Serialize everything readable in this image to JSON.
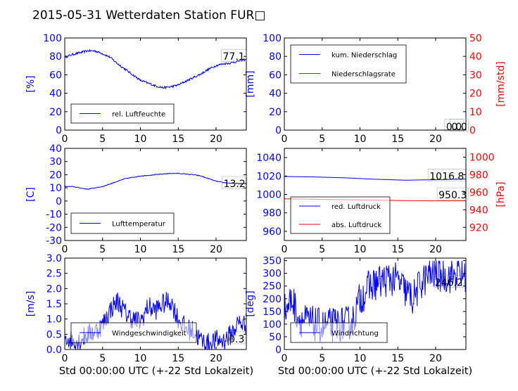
{
  "figure": {
    "title": "2015-05-31 Wetterdaten Station FUR□",
    "xlabel": "Std 00:00:00 UTC (+-22 Std Lokalzeit)",
    "colors": {
      "blue": "#0000ff",
      "red": "#ff0000",
      "axes": "#000000",
      "legend_border": "#000000"
    }
  },
  "chart_data": [
    {
      "id": "humidity",
      "type": "line",
      "ylabel": "[%]",
      "xlim": [
        0,
        24
      ],
      "ylim": [
        0,
        100
      ],
      "xticks": [
        0,
        5,
        10,
        15,
        20
      ],
      "yticks": [
        0,
        20,
        40,
        60,
        80,
        100
      ],
      "series": [
        {
          "name": "rel. Luftfeuchte",
          "color": "#0000ff",
          "noise": 1.2,
          "x": [
            0,
            1,
            2,
            3,
            4,
            5,
            6,
            7,
            8,
            9,
            10,
            11,
            12,
            13,
            14,
            15,
            16,
            17,
            18,
            19,
            20,
            21,
            22,
            23,
            24
          ],
          "y": [
            79,
            82,
            84,
            86,
            86,
            83,
            79,
            72,
            66,
            60,
            54,
            51,
            48,
            46,
            47,
            49,
            53,
            57,
            61,
            66,
            70,
            72,
            73,
            75,
            77
          ]
        }
      ],
      "annotations": [
        {
          "text": "77.1",
          "x": 20.7,
          "y": 80
        }
      ]
    },
    {
      "id": "precipitation",
      "type": "line",
      "ylabel": "[mm]",
      "ylabel_right": "[mm/std]",
      "xlim": [
        0,
        24
      ],
      "ylim": [
        0,
        100
      ],
      "ylim_right": [
        0,
        50
      ],
      "xticks": [
        0,
        5,
        10,
        15,
        20
      ],
      "yticks": [
        0,
        20,
        40,
        60,
        80,
        100
      ],
      "yticks_right": [
        0,
        10,
        20,
        30,
        40,
        50
      ],
      "series": [
        {
          "name": "kum. Niederschlag",
          "color": "#0000ff",
          "axis": "left",
          "noise": 0,
          "x": [
            0,
            24
          ],
          "y": [
            0,
            0
          ]
        },
        {
          "name": "Niederschlagsrate",
          "color": "#ff0000",
          "axis": "right",
          "noise": 0,
          "x": [
            0,
            24
          ],
          "y": [
            0,
            0
          ]
        }
      ],
      "annotations": [
        {
          "text": "0.0",
          "x": 21.2,
          "y": 4
        },
        {
          "text": "0.0",
          "x": 21.9,
          "y": 4
        }
      ]
    },
    {
      "id": "temperature",
      "type": "line",
      "ylabel": "[C]",
      "xlim": [
        0,
        24
      ],
      "ylim": [
        -30,
        40
      ],
      "xticks": [
        0,
        5,
        10,
        15,
        20
      ],
      "yticks": [
        -30,
        -20,
        -10,
        0,
        10,
        20,
        30,
        40
      ],
      "series": [
        {
          "name": "Lufttemperatur",
          "color": "#0000ff",
          "noise": 0.3,
          "x": [
            0,
            1,
            2,
            3,
            4,
            5,
            6,
            7,
            8,
            9,
            10,
            11,
            12,
            13,
            14,
            15,
            16,
            17,
            18,
            19,
            20,
            21,
            22,
            23,
            24
          ],
          "y": [
            11,
            11,
            10,
            9,
            10,
            11,
            13,
            15,
            17,
            18,
            19,
            19.5,
            20,
            20.5,
            21,
            21,
            20.5,
            20,
            19,
            17,
            15,
            14,
            13.5,
            13.2,
            13.2
          ]
        }
      ],
      "annotations": [
        {
          "text": "13.2",
          "x": 20.8,
          "y": 13.2
        }
      ]
    },
    {
      "id": "pressure",
      "type": "line",
      "ylabel_right": "[hPa]",
      "xlim": [
        0,
        24
      ],
      "ylim": [
        950,
        1050
      ],
      "ylim_right": [
        905,
        1010
      ],
      "xticks": [
        0,
        5,
        10,
        15,
        20
      ],
      "yticks": [
        960,
        980,
        1000,
        1020,
        1040
      ],
      "yticks_right": [
        920,
        940,
        960,
        980,
        1000
      ],
      "series": [
        {
          "name": "red. Luftdruck",
          "color": "#0000ff",
          "axis": "left",
          "noise": 0,
          "x": [
            0,
            4,
            8,
            12,
            16,
            20,
            24
          ],
          "y": [
            1019.5,
            1019,
            1018,
            1016.5,
            1015.5,
            1016,
            1016.8
          ]
        },
        {
          "name": "abs. Luftdruck",
          "color": "#ff0000",
          "axis": "right",
          "noise": 0,
          "x": [
            0,
            4,
            8,
            12,
            16,
            20,
            24
          ],
          "y": [
            952.5,
            952,
            951.5,
            951,
            950.5,
            950.2,
            950.3
          ]
        }
      ],
      "annotations": [
        {
          "text": "1016.8",
          "x": 19,
          "y": 1020
        },
        {
          "text": "950.3",
          "x": 20.2,
          "y": 957
        }
      ]
    },
    {
      "id": "windspeed",
      "type": "line",
      "ylabel": "[m/s]",
      "xlim": [
        0,
        24
      ],
      "ylim": [
        0,
        3
      ],
      "xticks": [
        0,
        5,
        10,
        15,
        20
      ],
      "yticks": [
        0,
        0.5,
        1.0,
        1.5,
        2.0,
        2.5,
        3.0
      ],
      "series": [
        {
          "name": "Windgeschwindigkeit",
          "color": "#0000ff",
          "noise": 0.35,
          "x": [
            0,
            1,
            2,
            3,
            4,
            5,
            6,
            7,
            8,
            9,
            10,
            11,
            12,
            13,
            14,
            15,
            16,
            17,
            18,
            19,
            20,
            21,
            22,
            23,
            24
          ],
          "y": [
            0.4,
            0.3,
            0.3,
            0.5,
            0.6,
            0.8,
            1.3,
            1.6,
            1.2,
            1.0,
            0.9,
            1.4,
            1.3,
            1.5,
            1.6,
            1.0,
            0.7,
            0.6,
            0.3,
            0.2,
            0.3,
            0.3,
            0.5,
            0.9,
            0.8
          ]
        }
      ],
      "annotations": [
        {
          "text": "0.3",
          "x": 21.5,
          "y": 0.35
        }
      ]
    },
    {
      "id": "winddirection",
      "type": "line",
      "ylabel": "[deg]",
      "xlim": [
        0,
        24
      ],
      "ylim": [
        0,
        360
      ],
      "xticks": [
        0,
        5,
        10,
        15,
        20
      ],
      "yticks": [
        0,
        50,
        100,
        150,
        200,
        250,
        300,
        350
      ],
      "series": [
        {
          "name": "Windrichtung",
          "color": "#0000ff",
          "noise": 70,
          "x": [
            0,
            1,
            2,
            3,
            4,
            5,
            6,
            7,
            8,
            9,
            10,
            11,
            12,
            13,
            14,
            15,
            16,
            17,
            18,
            19,
            20,
            21,
            22,
            23,
            24
          ],
          "y": [
            150,
            200,
            120,
            110,
            100,
            90,
            95,
            100,
            100,
            110,
            200,
            240,
            260,
            270,
            280,
            270,
            230,
            200,
            260,
            290,
            300,
            290,
            290,
            300,
            290
          ]
        }
      ],
      "annotations": [
        {
          "text": "246.2",
          "x": 19.7,
          "y": 265
        }
      ]
    }
  ]
}
